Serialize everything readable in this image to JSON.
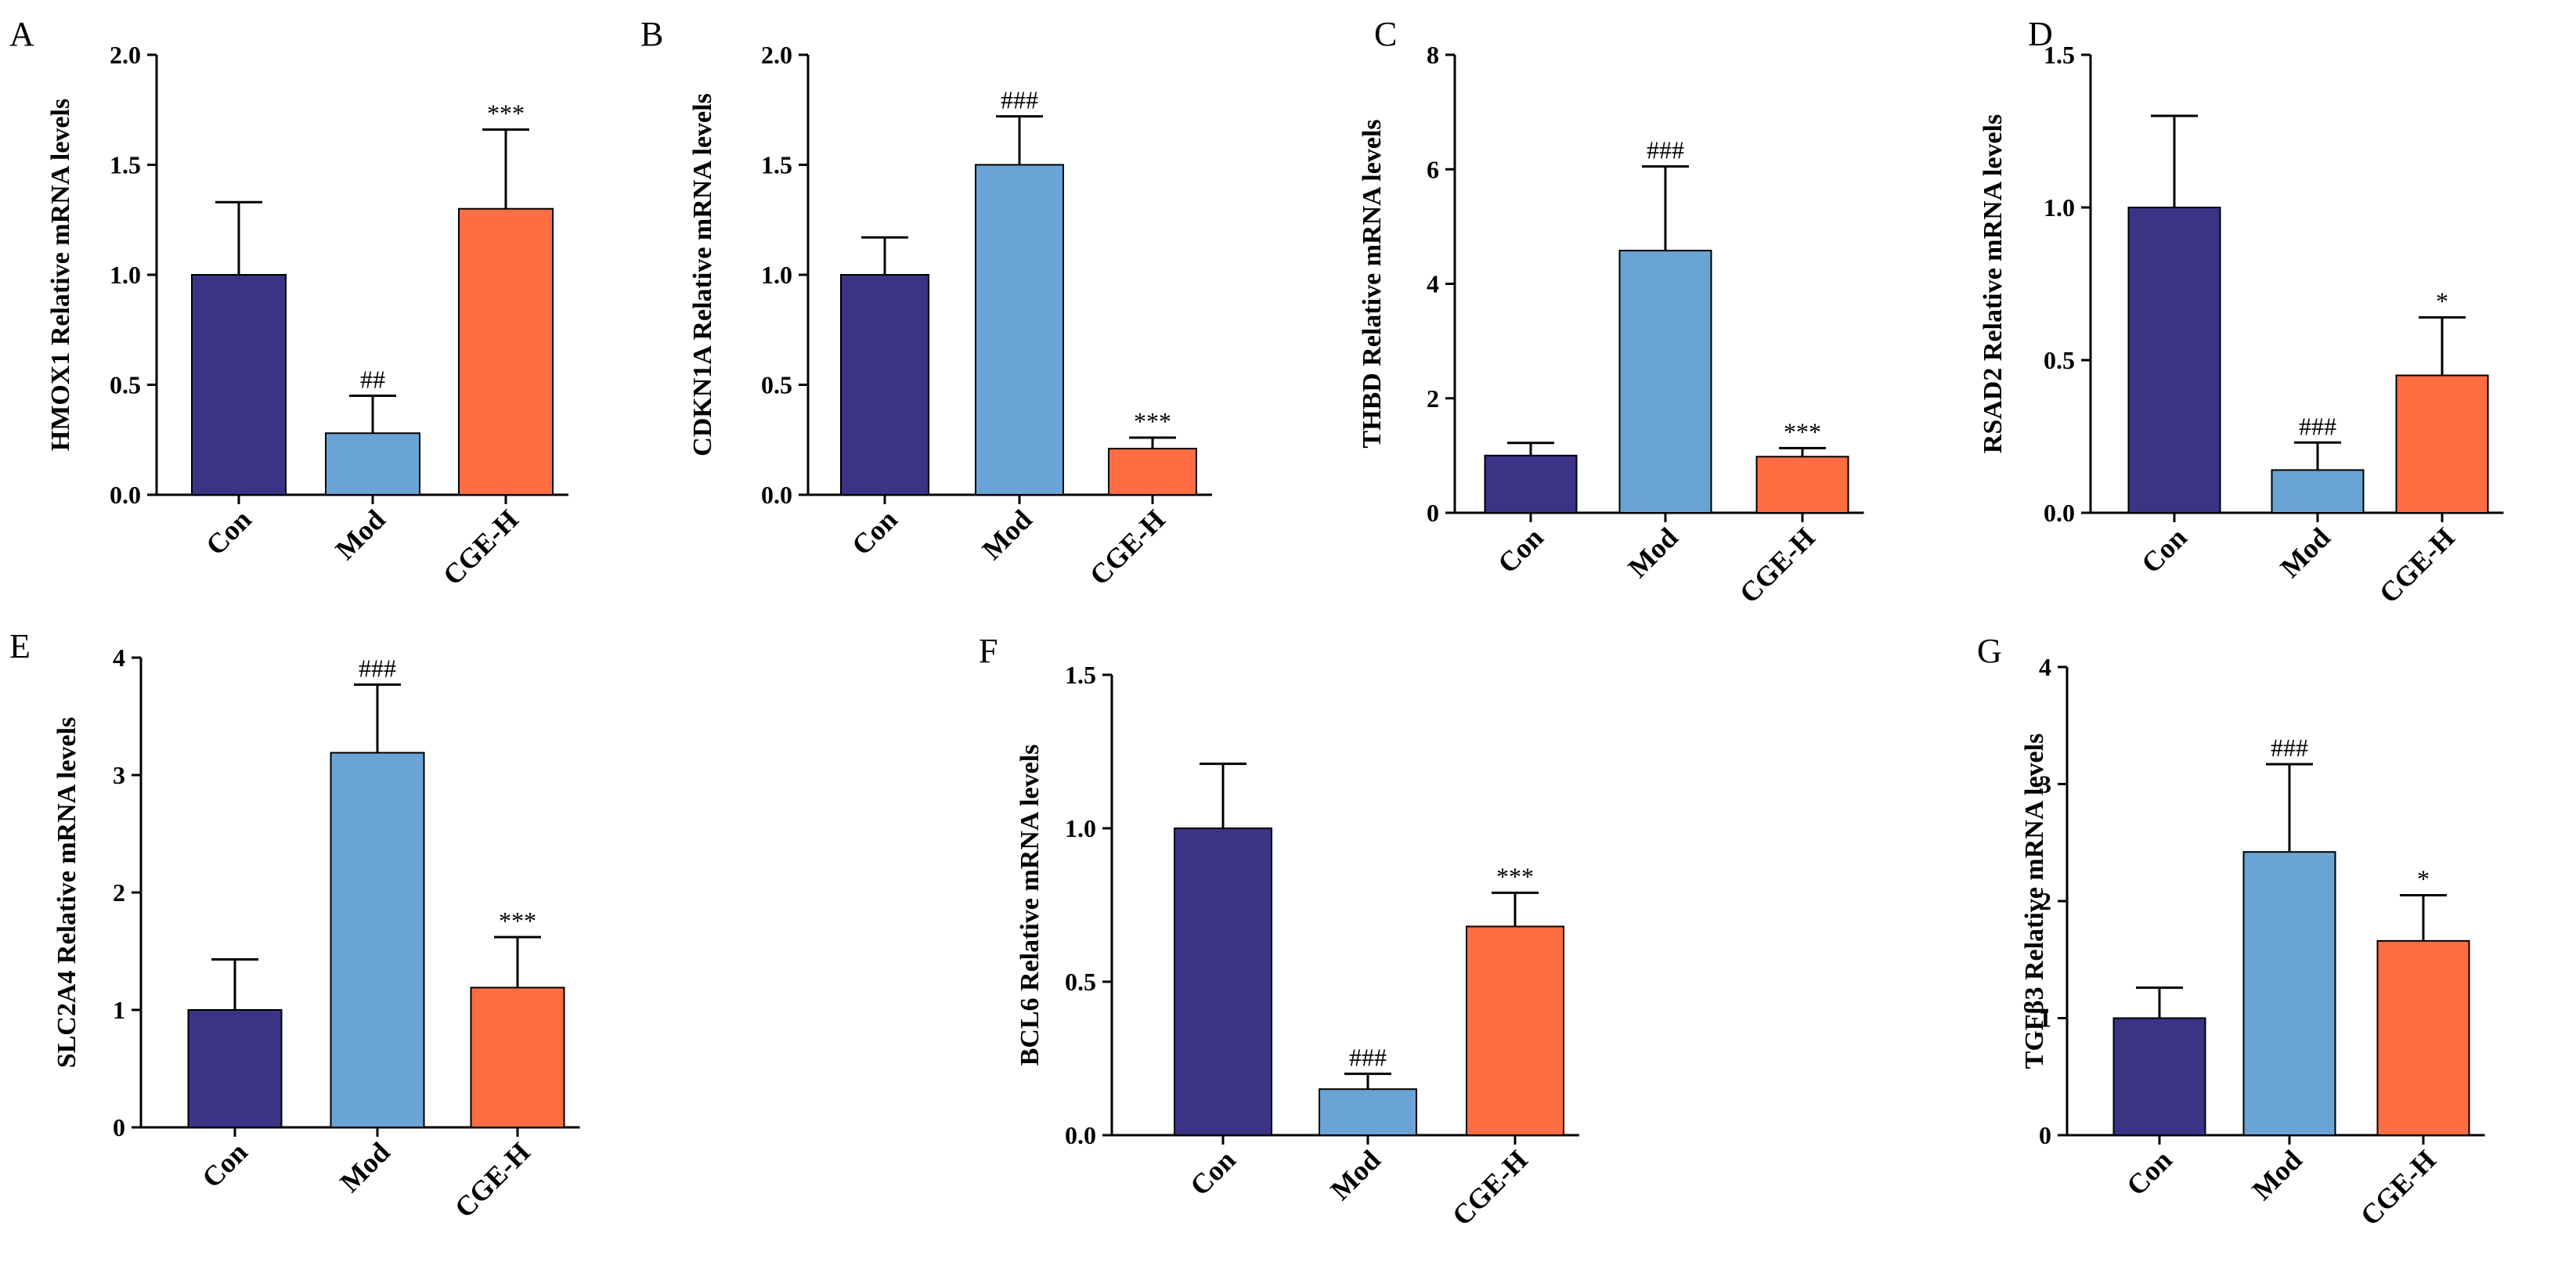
{
  "colors": {
    "Con": "#3b3385",
    "Mod": "#6aa3d5",
    "CGE-H": "#ff6d43"
  },
  "chart_data": [
    {
      "letter": "A",
      "type": "bar",
      "ylabel": "HMOX1 Relative mRNA levels",
      "categories": [
        "Con",
        "Mod",
        "CGE-H"
      ],
      "values": [
        1.0,
        0.28,
        1.3
      ],
      "errors": [
        0.33,
        0.17,
        0.36
      ],
      "annotations": [
        "",
        "##",
        "***"
      ],
      "ylim": [
        0,
        2.0
      ],
      "yticks": [
        "0.0",
        "0.5",
        "1.0",
        "1.5",
        "2.0"
      ]
    },
    {
      "letter": "B",
      "type": "bar",
      "ylabel": "CDKN1A Relative mRNA levels",
      "categories": [
        "Con",
        "Mod",
        "CGE-H"
      ],
      "values": [
        1.0,
        1.5,
        0.21
      ],
      "errors": [
        0.17,
        0.22,
        0.05
      ],
      "annotations": [
        "",
        "###",
        "***"
      ],
      "ylim": [
        0,
        2.0
      ],
      "yticks": [
        "0.0",
        "0.5",
        "1.0",
        "1.5",
        "2.0"
      ]
    },
    {
      "letter": "C",
      "type": "bar",
      "ylabel": "THBD Relative mRNA levels",
      "categories": [
        "Con",
        "Mod",
        "CGE-H"
      ],
      "values": [
        1.0,
        4.58,
        0.98
      ],
      "errors": [
        0.22,
        1.47,
        0.15
      ],
      "annotations": [
        "",
        "###",
        "***"
      ],
      "ylim": [
        0,
        8
      ],
      "yticks": [
        "0",
        "2",
        "4",
        "6",
        "8"
      ]
    },
    {
      "letter": "D",
      "type": "bar",
      "ylabel": "RSAD2 Relative mRNA levels",
      "categories": [
        "Con",
        "Mod",
        "CGE-H"
      ],
      "values": [
        1.0,
        0.14,
        0.45
      ],
      "errors": [
        0.3,
        0.09,
        0.19
      ],
      "annotations": [
        "",
        "###",
        "*"
      ],
      "ylim": [
        0,
        1.5
      ],
      "yticks": [
        "0.0",
        "0.5",
        "1.0",
        "1.5"
      ]
    },
    {
      "letter": "E",
      "type": "bar",
      "ylabel": "SLC2A4 Relative mRNA levels",
      "categories": [
        "Con",
        "Mod",
        "CGE-H"
      ],
      "values": [
        1.0,
        3.19,
        1.19
      ],
      "errors": [
        0.43,
        0.58,
        0.43
      ],
      "annotations": [
        "",
        "###",
        "***"
      ],
      "ylim": [
        0,
        4
      ],
      "yticks": [
        "0",
        "1",
        "2",
        "3",
        "4"
      ]
    },
    {
      "letter": "F",
      "type": "bar",
      "ylabel": "BCL6 Relative mRNA levels",
      "categories": [
        "Con",
        "Mod",
        "CGE-H"
      ],
      "values": [
        1.0,
        0.15,
        0.68
      ],
      "errors": [
        0.21,
        0.05,
        0.11
      ],
      "annotations": [
        "",
        "###",
        "***"
      ],
      "ylim": [
        0,
        1.5
      ],
      "yticks": [
        "0.0",
        "0.5",
        "1.0",
        "1.5"
      ]
    },
    {
      "letter": "G",
      "type": "bar",
      "ylabel": "TGFβ3 Relative mRNA levels",
      "categories": [
        "Con",
        "Mod",
        "CGE-H"
      ],
      "values": [
        1.0,
        2.42,
        1.66
      ],
      "errors": [
        0.26,
        0.75,
        0.39
      ],
      "annotations": [
        "",
        "###",
        "*"
      ],
      "ylim": [
        0,
        4
      ],
      "yticks": [
        "0",
        "1",
        "2",
        "3",
        "4"
      ]
    }
  ]
}
